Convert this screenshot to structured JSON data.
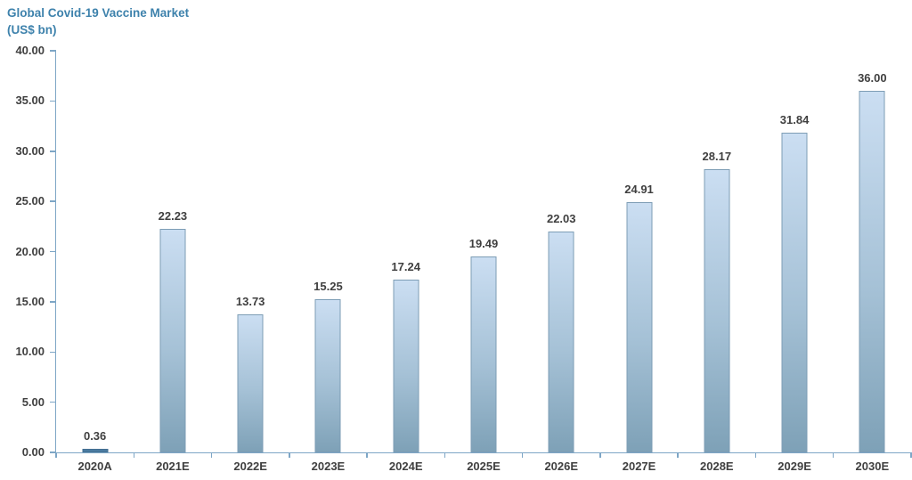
{
  "title": {
    "line1": "Global Covid-19 Vaccine Market",
    "line2": "(US$ bn)"
  },
  "colors": {
    "title_text": "#3E82AC",
    "axis_line": "#7EA6C6",
    "label_text": "#3F3F3F",
    "bar_gradient_top": "#CBDEF2",
    "bar_gradient_bottom": "#7EA1B7",
    "bar_border": "#7D9DB5",
    "tiny_bar_fill": "#4A7BA0"
  },
  "chart_data": {
    "type": "bar",
    "title": "Global Covid-19 Vaccine Market",
    "subtitle": "(US$ bn)",
    "categories": [
      "2020A",
      "2021E",
      "2022E",
      "2023E",
      "2024E",
      "2025E",
      "2026E",
      "2027E",
      "2028E",
      "2029E",
      "2030E"
    ],
    "values": [
      0.36,
      22.23,
      13.73,
      15.25,
      17.24,
      19.49,
      22.03,
      24.91,
      28.17,
      31.84,
      36.0
    ],
    "value_labels": [
      "0.36",
      "22.23",
      "13.73",
      "15.25",
      "17.24",
      "19.49",
      "22.03",
      "24.91",
      "28.17",
      "31.84",
      "36.00"
    ],
    "xlabel": "",
    "ylabel": "",
    "ylim": [
      0,
      40
    ],
    "y_tick_step": 5,
    "y_ticks": [
      "0.00",
      "5.00",
      "10.00",
      "15.00",
      "20.00",
      "25.00",
      "30.00",
      "35.00",
      "40.00"
    ],
    "grid": false,
    "legend_position": "none",
    "data_labels": "above-bars"
  }
}
